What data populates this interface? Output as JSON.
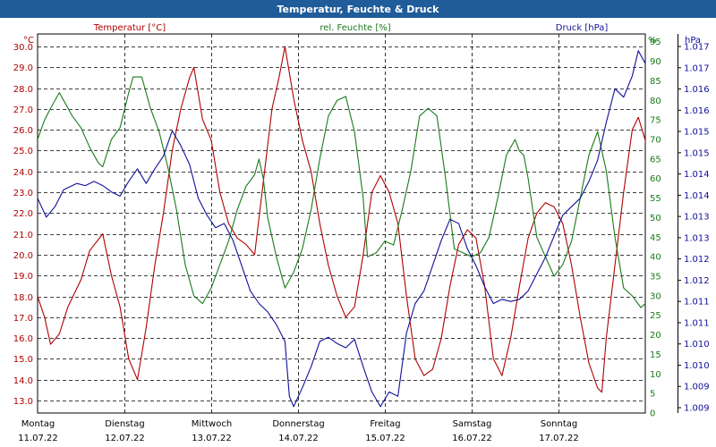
{
  "chart_data": {
    "type": "line",
    "title": "Temperatur, Feuchte & Druck",
    "xlabel": "",
    "x_ticks": [
      {
        "day": "Montag",
        "date": "11.07.22"
      },
      {
        "day": "Dienstag",
        "date": "12.07.22"
      },
      {
        "day": "Mittwoch",
        "date": "13.07.22"
      },
      {
        "day": "Donnerstag",
        "date": "14.07.22"
      },
      {
        "day": "Freitag",
        "date": "15.07.22"
      },
      {
        "day": "Samstag",
        "date": "16.07.22"
      },
      {
        "day": "Sonntag",
        "date": "17.07.22"
      }
    ],
    "x_range_days": [
      0,
      7
    ],
    "grid": true,
    "axes": {
      "temperature": {
        "label": "Temperatur [°C]",
        "unit": "°C",
        "color": "#b00000",
        "ylim": [
          12.4,
          30.6
        ],
        "ticks": [
          "13.0",
          "14.0",
          "15.0",
          "16.0",
          "17.0",
          "18.0",
          "19.0",
          "20.0",
          "21.0",
          "22.0",
          "23.0",
          "24.0",
          "25.0",
          "26.0",
          "27.0",
          "28.0",
          "29.0",
          "30.0"
        ]
      },
      "humidity": {
        "label": "rel. Feuchte [%]",
        "unit": "%",
        "color": "#1a7a1a",
        "ylim": [
          0,
          97
        ],
        "ticks": [
          "0",
          "5",
          "10",
          "15",
          "20",
          "25",
          "30",
          "35",
          "40",
          "45",
          "50",
          "55",
          "60",
          "65",
          "70",
          "75",
          "80",
          "85",
          "90",
          "95"
        ]
      },
      "pressure": {
        "label": "Druck [hPa]",
        "unit": "hPa",
        "color": "#10109a",
        "ylim": [
          1008.9,
          1017.9
        ],
        "ticks": [
          "1.009",
          "1.009",
          "1.010",
          "1.010",
          "1.011",
          "1.011",
          "1.012",
          "1.012",
          "1.013",
          "1.013",
          "1.014",
          "1.014",
          "1.015",
          "1.015",
          "1.016",
          "1.016",
          "1.017",
          "1.017"
        ]
      }
    },
    "series": [
      {
        "name": "Temperatur [°C]",
        "axis": "temperature",
        "color": "#b00000",
        "points": [
          [
            0.0,
            18.0
          ],
          [
            0.08,
            17.0
          ],
          [
            0.15,
            15.7
          ],
          [
            0.25,
            16.2
          ],
          [
            0.35,
            17.5
          ],
          [
            0.5,
            18.8
          ],
          [
            0.6,
            20.2
          ],
          [
            0.75,
            21.0
          ],
          [
            0.85,
            19.0
          ],
          [
            0.95,
            17.5
          ],
          [
            1.05,
            15.0
          ],
          [
            1.15,
            14.0
          ],
          [
            1.25,
            16.5
          ],
          [
            1.35,
            19.5
          ],
          [
            1.45,
            22.0
          ],
          [
            1.55,
            25.0
          ],
          [
            1.65,
            27.0
          ],
          [
            1.75,
            28.5
          ],
          [
            1.8,
            29.0
          ],
          [
            1.9,
            26.5
          ],
          [
            2.0,
            25.5
          ],
          [
            2.1,
            23.0
          ],
          [
            2.2,
            21.5
          ],
          [
            2.3,
            20.8
          ],
          [
            2.4,
            20.5
          ],
          [
            2.5,
            20.0
          ],
          [
            2.6,
            23.5
          ],
          [
            2.7,
            27.0
          ],
          [
            2.78,
            28.5
          ],
          [
            2.85,
            30.0
          ],
          [
            2.95,
            27.5
          ],
          [
            3.05,
            25.5
          ],
          [
            3.15,
            24.0
          ],
          [
            3.25,
            21.5
          ],
          [
            3.35,
            19.5
          ],
          [
            3.45,
            18.0
          ],
          [
            3.55,
            17.0
          ],
          [
            3.65,
            17.5
          ],
          [
            3.75,
            20.0
          ],
          [
            3.85,
            23.0
          ],
          [
            3.95,
            23.8
          ],
          [
            4.05,
            23.0
          ],
          [
            4.15,
            21.5
          ],
          [
            4.25,
            18.0
          ],
          [
            4.35,
            15.0
          ],
          [
            4.45,
            14.2
          ],
          [
            4.55,
            14.5
          ],
          [
            4.65,
            16.0
          ],
          [
            4.75,
            18.5
          ],
          [
            4.85,
            20.5
          ],
          [
            4.95,
            21.2
          ],
          [
            5.05,
            20.8
          ],
          [
            5.15,
            18.5
          ],
          [
            5.25,
            15.0
          ],
          [
            5.35,
            14.2
          ],
          [
            5.45,
            16.0
          ],
          [
            5.55,
            18.5
          ],
          [
            5.65,
            20.8
          ],
          [
            5.75,
            22.0
          ],
          [
            5.85,
            22.5
          ],
          [
            5.95,
            22.3
          ],
          [
            6.05,
            21.5
          ],
          [
            6.15,
            19.5
          ],
          [
            6.25,
            17.0
          ],
          [
            6.35,
            14.8
          ],
          [
            6.45,
            13.6
          ],
          [
            6.5,
            13.4
          ],
          [
            6.55,
            16.0
          ],
          [
            6.65,
            19.5
          ],
          [
            6.75,
            23.0
          ],
          [
            6.85,
            26.0
          ],
          [
            6.92,
            26.6
          ],
          [
            7.0,
            25.5
          ],
          [
            7.07,
            23.5
          ],
          [
            7.12,
            22.5
          ],
          [
            7.18,
            21.8
          ]
        ]
      },
      {
        "name": "rel. Feuchte [%]",
        "axis": "humidity",
        "color": "#1a7a1a",
        "points": [
          [
            0.0,
            70
          ],
          [
            0.08,
            75
          ],
          [
            0.15,
            78
          ],
          [
            0.25,
            82
          ],
          [
            0.3,
            80
          ],
          [
            0.4,
            76
          ],
          [
            0.5,
            73
          ],
          [
            0.6,
            68
          ],
          [
            0.7,
            64
          ],
          [
            0.75,
            63
          ],
          [
            0.85,
            70
          ],
          [
            0.95,
            73
          ],
          [
            1.05,
            82
          ],
          [
            1.1,
            86
          ],
          [
            1.2,
            86
          ],
          [
            1.3,
            78
          ],
          [
            1.4,
            72
          ],
          [
            1.5,
            63
          ],
          [
            1.6,
            52
          ],
          [
            1.7,
            38
          ],
          [
            1.8,
            30
          ],
          [
            1.9,
            28
          ],
          [
            2.0,
            32
          ],
          [
            2.1,
            38
          ],
          [
            2.2,
            44
          ],
          [
            2.3,
            52
          ],
          [
            2.4,
            58
          ],
          [
            2.5,
            61
          ],
          [
            2.55,
            65
          ],
          [
            2.6,
            60
          ],
          [
            2.65,
            50
          ],
          [
            2.75,
            40
          ],
          [
            2.85,
            32
          ],
          [
            2.95,
            36
          ],
          [
            3.05,
            42
          ],
          [
            3.15,
            52
          ],
          [
            3.25,
            65
          ],
          [
            3.35,
            76
          ],
          [
            3.45,
            80
          ],
          [
            3.55,
            81
          ],
          [
            3.65,
            72
          ],
          [
            3.75,
            55
          ],
          [
            3.8,
            40
          ],
          [
            3.9,
            41
          ],
          [
            4.0,
            44
          ],
          [
            4.1,
            43
          ],
          [
            4.2,
            52
          ],
          [
            4.3,
            62
          ],
          [
            4.4,
            76
          ],
          [
            4.5,
            78
          ],
          [
            4.6,
            76
          ],
          [
            4.7,
            60
          ],
          [
            4.8,
            42
          ],
          [
            4.9,
            41
          ],
          [
            5.0,
            40
          ],
          [
            5.1,
            41
          ],
          [
            5.2,
            45
          ],
          [
            5.3,
            55
          ],
          [
            5.4,
            66
          ],
          [
            5.5,
            70
          ],
          [
            5.55,
            67
          ],
          [
            5.6,
            66
          ],
          [
            5.65,
            60
          ],
          [
            5.75,
            45
          ],
          [
            5.85,
            40
          ],
          [
            5.95,
            35
          ],
          [
            6.05,
            38
          ],
          [
            6.15,
            44
          ],
          [
            6.25,
            55
          ],
          [
            6.35,
            66
          ],
          [
            6.45,
            72
          ],
          [
            6.55,
            62
          ],
          [
            6.65,
            45
          ],
          [
            6.75,
            32
          ],
          [
            6.85,
            30
          ],
          [
            6.95,
            27
          ],
          [
            7.05,
            29
          ],
          [
            7.15,
            36
          ],
          [
            7.25,
            41
          ]
        ]
      },
      {
        "name": "Druck [hPa]",
        "axis": "pressure",
        "color": "#10109a",
        "points": [
          [
            0.0,
            1014.0
          ],
          [
            0.1,
            1013.55
          ],
          [
            0.2,
            1013.8
          ],
          [
            0.3,
            1014.2
          ],
          [
            0.45,
            1014.35
          ],
          [
            0.55,
            1014.3
          ],
          [
            0.65,
            1014.4
          ],
          [
            0.75,
            1014.3
          ],
          [
            0.85,
            1014.15
          ],
          [
            0.95,
            1014.05
          ],
          [
            1.05,
            1014.4
          ],
          [
            1.15,
            1014.7
          ],
          [
            1.25,
            1014.35
          ],
          [
            1.35,
            1014.7
          ],
          [
            1.45,
            1015.0
          ],
          [
            1.55,
            1015.6
          ],
          [
            1.65,
            1015.25
          ],
          [
            1.75,
            1014.8
          ],
          [
            1.85,
            1014.0
          ],
          [
            1.95,
            1013.6
          ],
          [
            2.05,
            1013.3
          ],
          [
            2.15,
            1013.4
          ],
          [
            2.25,
            1013.0
          ],
          [
            2.35,
            1012.4
          ],
          [
            2.45,
            1011.8
          ],
          [
            2.55,
            1011.5
          ],
          [
            2.65,
            1011.3
          ],
          [
            2.75,
            1011.0
          ],
          [
            2.85,
            1010.6
          ],
          [
            2.9,
            1009.3
          ],
          [
            2.95,
            1009.05
          ],
          [
            3.05,
            1009.5
          ],
          [
            3.15,
            1010.0
          ],
          [
            3.25,
            1010.6
          ],
          [
            3.35,
            1010.7
          ],
          [
            3.45,
            1010.55
          ],
          [
            3.55,
            1010.45
          ],
          [
            3.65,
            1010.65
          ],
          [
            3.75,
            1010.0
          ],
          [
            3.85,
            1009.4
          ],
          [
            3.95,
            1009.05
          ],
          [
            4.05,
            1009.4
          ],
          [
            4.15,
            1009.3
          ],
          [
            4.25,
            1010.8
          ],
          [
            4.35,
            1011.5
          ],
          [
            4.45,
            1011.8
          ],
          [
            4.55,
            1012.4
          ],
          [
            4.65,
            1013.0
          ],
          [
            4.75,
            1013.5
          ],
          [
            4.85,
            1013.4
          ],
          [
            4.95,
            1012.8
          ],
          [
            5.05,
            1012.4
          ],
          [
            5.15,
            1011.9
          ],
          [
            5.25,
            1011.5
          ],
          [
            5.35,
            1011.6
          ],
          [
            5.45,
            1011.55
          ],
          [
            5.55,
            1011.6
          ],
          [
            5.65,
            1011.8
          ],
          [
            5.75,
            1012.2
          ],
          [
            5.85,
            1012.6
          ],
          [
            5.95,
            1013.1
          ],
          [
            6.05,
            1013.6
          ],
          [
            6.15,
            1013.8
          ],
          [
            6.25,
            1014.0
          ],
          [
            6.35,
            1014.4
          ],
          [
            6.45,
            1014.9
          ],
          [
            6.55,
            1015.8
          ],
          [
            6.65,
            1016.6
          ],
          [
            6.75,
            1016.4
          ],
          [
            6.85,
            1016.9
          ],
          [
            6.92,
            1017.5
          ],
          [
            7.0,
            1017.2
          ],
          [
            7.1,
            1016.9
          ],
          [
            7.2,
            1016.3
          ],
          [
            7.3,
            1015.5
          ],
          [
            7.4,
            1014.5
          ],
          [
            7.48,
            1014.4
          ],
          [
            7.55,
            1014.7
          ]
        ]
      }
    ]
  }
}
